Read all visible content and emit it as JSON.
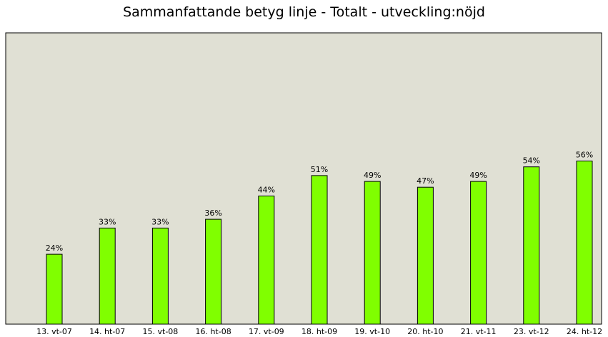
{
  "chart_data": {
    "type": "bar",
    "title": "Sammanfattande betyg linje - Totalt - utveckling:nöjd",
    "categories": [
      "13. vt-07",
      "14. ht-07",
      "15. vt-08",
      "16. ht-08",
      "17. vt-09",
      "18. ht-09",
      "19. vt-10",
      "20. ht-10",
      "21. vt-11",
      "23. vt-12",
      "24. ht-12"
    ],
    "values": [
      24,
      33,
      33,
      36,
      44,
      51,
      49,
      47,
      49,
      54,
      56
    ],
    "data_labels": [
      "24%",
      "33%",
      "33%",
      "36%",
      "44%",
      "51%",
      "49%",
      "47%",
      "49%",
      "54%",
      "56%"
    ],
    "unit": "%",
    "ylim": [
      0,
      100
    ],
    "grid": false,
    "legend": "none",
    "colors": {
      "bar_fill": "#80ff00",
      "bar_stroke": "#000000",
      "plot_background": "#e0e0d4",
      "plot_border": "#000000"
    }
  }
}
